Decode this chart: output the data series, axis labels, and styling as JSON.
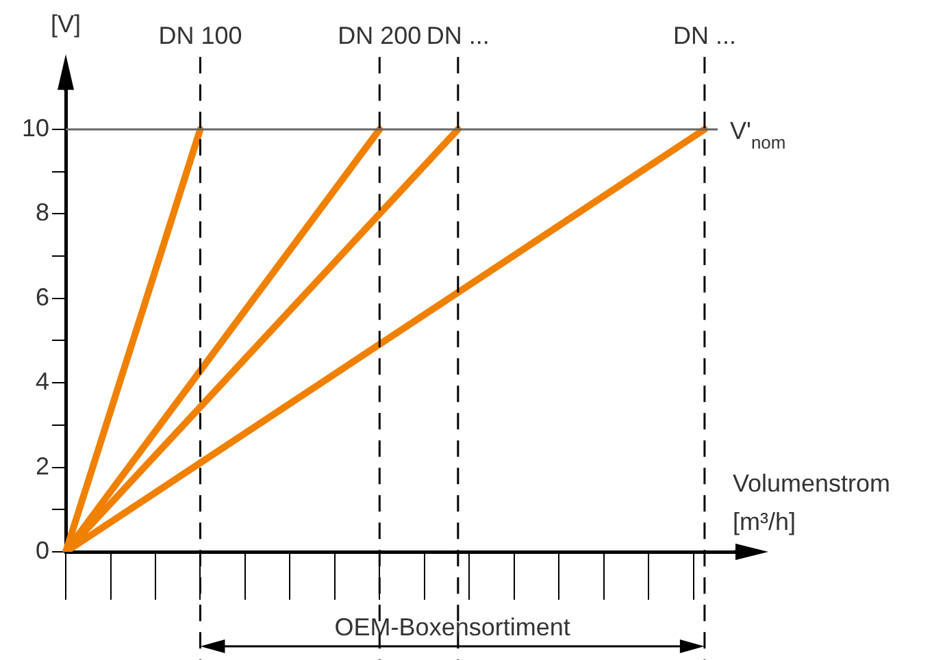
{
  "chart_data": {
    "type": "line",
    "ylabel": "[V]",
    "xlabel": "Volumenstrom [m³/h]",
    "categories": [
      null,
      null,
      null,
      null,
      null,
      null,
      null,
      null,
      null,
      null,
      null,
      null,
      "DN 100",
      null,
      null,
      null,
      null,
      null,
      null,
      null,
      null,
      null,
      null,
      null,
      null,
      null,
      null,
      null,
      "DN 200",
      null,
      null,
      null,
      null,
      null,
      null,
      "DN ...",
      null,
      null,
      null,
      null,
      null,
      null,
      null,
      null,
      null,
      null,
      null,
      null,
      null,
      null,
      null,
      null,
      null,
      null,
      null,
      null,
      null,
      "DN ...",
      null,
      null,
      null
    ],
    "series": [
      {
        "color": "#f08000",
        "values": [
          0,
          null,
          null,
          null,
          null,
          null,
          null,
          null,
          null,
          null,
          null,
          null,
          10,
          null,
          null,
          null,
          null,
          null,
          null,
          null,
          null,
          null,
          null,
          null,
          null,
          null,
          null,
          null,
          null,
          null,
          null,
          null,
          null,
          null,
          null,
          null,
          null,
          null,
          null,
          null,
          null,
          null,
          null,
          null,
          null,
          null,
          null,
          null,
          null,
          null,
          null,
          null,
          null,
          null,
          null,
          null,
          null,
          null,
          null,
          null,
          null
        ]
      },
      {
        "color": "#f08000",
        "values": [
          0,
          null,
          null,
          null,
          null,
          null,
          null,
          null,
          null,
          null,
          null,
          null,
          null,
          null,
          null,
          null,
          null,
          null,
          null,
          null,
          null,
          null,
          null,
          null,
          null,
          null,
          null,
          null,
          10,
          null,
          null,
          null,
          null,
          null,
          null,
          null,
          null,
          null,
          null,
          null,
          null,
          null,
          null,
          null,
          null,
          null,
          null,
          null,
          null,
          null,
          null,
          null,
          null,
          null,
          null,
          null,
          null,
          null,
          null,
          null,
          null
        ]
      },
      {
        "color": "#f08000",
        "values": [
          0,
          null,
          null,
          null,
          null,
          null,
          null,
          null,
          null,
          null,
          null,
          null,
          null,
          null,
          null,
          null,
          null,
          null,
          null,
          null,
          null,
          null,
          null,
          null,
          null,
          null,
          null,
          null,
          null,
          null,
          null,
          null,
          null,
          null,
          null,
          10,
          null,
          null,
          null,
          null,
          null,
          null,
          null,
          null,
          null,
          null,
          null,
          null,
          null,
          null,
          null,
          null,
          null,
          null,
          null,
          null,
          null,
          null,
          null,
          null,
          null
        ]
      },
      {
        "color": "#f08000",
        "values": [
          0,
          null,
          null,
          null,
          null,
          null,
          null,
          null,
          null,
          null,
          null,
          null,
          null,
          null,
          null,
          null,
          null,
          null,
          null,
          null,
          null,
          null,
          null,
          null,
          null,
          null,
          null,
          null,
          null,
          null,
          null,
          null,
          null,
          null,
          null,
          null,
          null,
          null,
          null,
          null,
          null,
          null,
          null,
          null,
          null,
          null,
          null,
          null,
          null,
          null,
          null,
          null,
          null,
          null,
          null,
          null,
          null,
          10,
          null,
          null,
          null
        ]
      }
    ],
    "ylim": [
      0,
      11
    ],
    "yticks": [
      0,
      {
        "value": 1,
        "label": null
      },
      2,
      {
        "value": 3,
        "label": null
      },
      4,
      {
        "value": 5,
        "label": null
      },
      6,
      {
        "value": 7,
        "label": null
      },
      8,
      {
        "value": 9,
        "label": null
      },
      10
    ],
    "grid": "x",
    "legend": false,
    "marker": "none",
    "line_style": "solid",
    "ref_lines": [
      {
        "axis": "y",
        "value": 10,
        "label": "V'$_{nom}$",
        "color": "#666666"
      }
    ],
    "annotations": [
      "OEM-Boxensortiment"
    ]
  }
}
